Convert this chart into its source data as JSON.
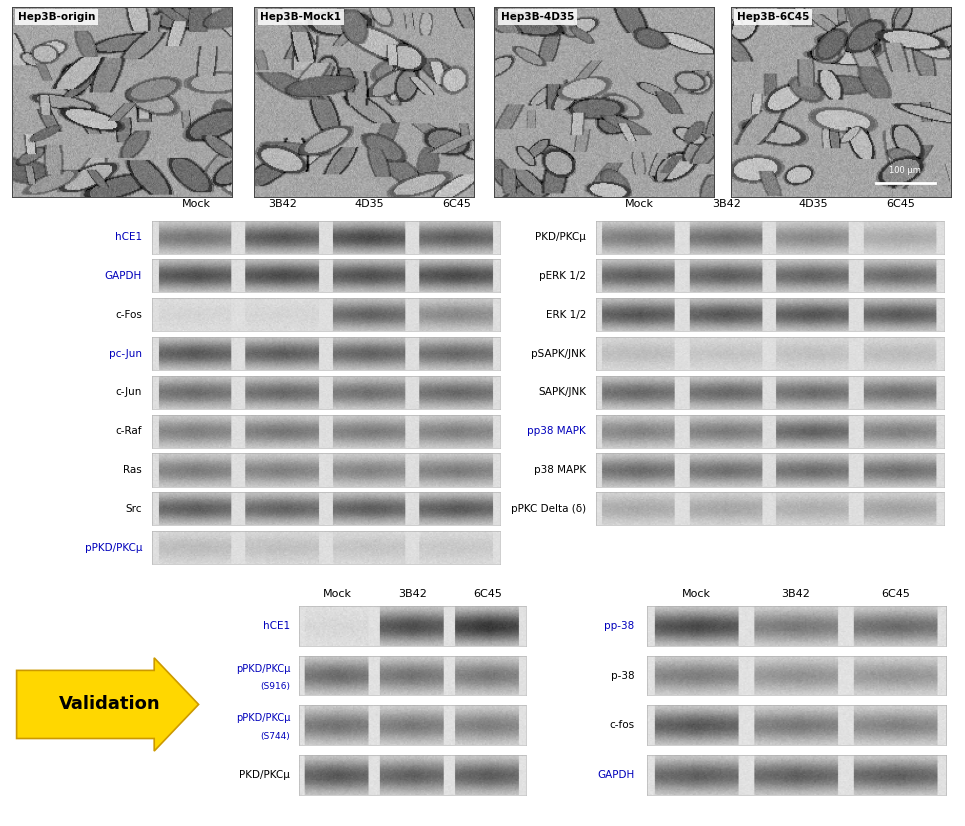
{
  "bg_color": "#ffffff",
  "top_labels": [
    "Hep3B-origin",
    "Hep3B-Mock1",
    "Hep3B-4D35",
    "Hep3B-6C45"
  ],
  "scale_bar_text": "100 μm",
  "middle_left_header": [
    "Mock",
    "3B42",
    "4D35",
    "6C45"
  ],
  "middle_right_header": [
    "Mock",
    "3B42",
    "4D35",
    "6C45"
  ],
  "left_labels": [
    {
      "text": "hCE1",
      "color": "#0000bb"
    },
    {
      "text": "GAPDH",
      "color": "#0000bb"
    },
    {
      "text": "c-Fos",
      "color": "#000000"
    },
    {
      "text": "pc-Jun",
      "color": "#0000bb"
    },
    {
      "text": "c-Jun",
      "color": "#000000"
    },
    {
      "text": "c-Raf",
      "color": "#000000"
    },
    {
      "text": "Ras",
      "color": "#000000"
    },
    {
      "text": "Src",
      "color": "#000000"
    },
    {
      "text": "pPKD/PKCμ",
      "color": "#0000bb"
    }
  ],
  "right_labels": [
    {
      "text": "PKD/PKCμ",
      "color": "#000000"
    },
    {
      "text": "pERK 1/2",
      "color": "#000000"
    },
    {
      "text": "ERK 1/2",
      "color": "#000000"
    },
    {
      "text": "pSAPK/JNK",
      "color": "#000000"
    },
    {
      "text": "SAPK/JNK",
      "color": "#000000"
    },
    {
      "text": "pp38 MAPK",
      "color": "#0000bb"
    },
    {
      "text": "p38 MAPK",
      "color": "#000000"
    },
    {
      "text": "pPKC Delta (δ)",
      "color": "#000000"
    }
  ],
  "bottom_left_labels": [
    {
      "text": "hCE1",
      "color": "#0000bb"
    },
    {
      "text": "pPKD/PKCμ\n(S916)",
      "color": "#0000bb"
    },
    {
      "text": "pPKD/PKCμ\n(S744)",
      "color": "#0000bb"
    },
    {
      "text": "PKD/PKCμ",
      "color": "#000000"
    }
  ],
  "bottom_right_labels": [
    {
      "text": "pp-38",
      "color": "#0000bb"
    },
    {
      "text": "p-38",
      "color": "#000000"
    },
    {
      "text": "c-fos",
      "color": "#000000"
    },
    {
      "text": "GAPDH",
      "color": "#0000bb"
    }
  ],
  "bottom_left_header": [
    "Mock",
    "3B42",
    "6C45"
  ],
  "bottom_right_header": [
    "Mock",
    "3B42",
    "6C45"
  ],
  "validation_text": "Validation",
  "validation_bg": "#FFD700",
  "validation_text_color": "#000000"
}
